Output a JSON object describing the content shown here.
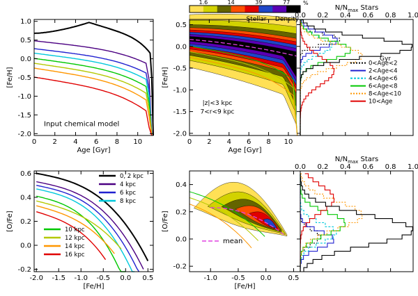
{
  "chart_data": [
    {
      "id": "A",
      "type": "line",
      "title": "",
      "annotation": "Input chemical model",
      "xlabel": "Age [Gyr]",
      "ylabel": "[Fe/H]",
      "xlim": [
        0,
        11.5
      ],
      "ylim": [
        -2.05,
        1.05
      ],
      "xticks": [
        0,
        2,
        4,
        6,
        8,
        10
      ],
      "yticks": [
        -2.0,
        -1.5,
        -1.0,
        -0.5,
        0.0,
        0.5,
        1.0
      ],
      "xtick_labels": [
        "0",
        "2",
        "4",
        "6",
        "8",
        "10"
      ],
      "ytick_labels": [
        "-2.0",
        "-1.5",
        "-1.0",
        "-0.5",
        "0.0",
        "0.5",
        "1.0"
      ],
      "series": [
        {
          "name": "0, 2 kpc",
          "color": "#000000",
          "start": 0.68,
          "peak": 0.97,
          "peak_x": 5.3
        },
        {
          "name": "4 kpc",
          "color": "#4b0082",
          "start": 0.48
        },
        {
          "name": "6 kpc",
          "color": "#2020d0",
          "start": 0.27
        },
        {
          "name": "8 kpc",
          "color": "#00c8dc",
          "start": 0.15
        },
        {
          "name": "10 kpc",
          "color": "#00c800",
          "start": 0.01
        },
        {
          "name": "12 kpc",
          "color": "#b4c800",
          "start": -0.12
        },
        {
          "name": "14 kpc",
          "color": "#ff9600",
          "start": -0.25
        },
        {
          "name": "16 kpc",
          "color": "#e00000",
          "start": -0.49
        }
      ]
    },
    {
      "id": "B",
      "type": "heatmap",
      "xlabel": "Age [Gyr]",
      "ylabel": "[Fe/H]",
      "xlim": [
        0,
        11.2
      ],
      "ylim": [
        -2.05,
        0.62
      ],
      "xticks": [
        0,
        2,
        4,
        6,
        8,
        10
      ],
      "yticks": [
        -2.0,
        -1.5,
        -1.0,
        -0.5,
        0.0,
        0.5
      ],
      "xtick_labels": [
        "0",
        "2",
        "4",
        "6",
        "8",
        "10"
      ],
      "ytick_labels": [
        "-2.0",
        "-1.5",
        "-1.0",
        "-0.5",
        "0.0",
        "0.5"
      ],
      "annotation_lines": [
        "|z|<3 kpc",
        "7<r<9 kpc"
      ],
      "colorbar": {
        "ticks": [
          "1.6",
          "14",
          "39",
          "77"
        ],
        "percent_label": "%",
        "title_left": "Stellar",
        "title_right": "Density",
        "colors": [
          "#ffe055",
          "#d2d200",
          "#646400",
          "#ff5000",
          "#e00000",
          "#1e46c8",
          "#5a00b4",
          "#000000"
        ]
      }
    },
    {
      "id": "C",
      "type": "line",
      "xlabel": "N/N",
      "xlabel_sub": "max",
      "xlabel_suffix": " Stars",
      "xlim": [
        0,
        1.0
      ],
      "ylim": [
        -2.05,
        0.62
      ],
      "xticks": [
        0,
        0.2,
        0.4,
        0.6,
        0.8,
        1.0
      ],
      "xtick_labels": [
        "0.0",
        "0.2",
        "0.4",
        "0.6",
        "0.8",
        "1.0"
      ],
      "legend_title": "Gyr",
      "series": [
        {
          "name": "0<Age<2",
          "color": "#000000",
          "dash": "2,2"
        },
        {
          "name": "2<Age<4",
          "color": "#2020d0",
          "dash": ""
        },
        {
          "name": "4<Age<6",
          "color": "#00c8dc",
          "dash": "3,2"
        },
        {
          "name": "6<Age<8",
          "color": "#00c800",
          "dash": ""
        },
        {
          "name": "8<Age<10",
          "color": "#ff9600",
          "dash": "2,2"
        },
        {
          "name": "10<Age",
          "color": "#e00000",
          "dash": ""
        }
      ]
    },
    {
      "id": "D",
      "type": "line",
      "xlabel": "[Fe/H]",
      "ylabel": "[O/Fe]",
      "xlim": [
        -2.05,
        0.62
      ],
      "ylim": [
        -0.22,
        0.62
      ],
      "xticks": [
        -2.0,
        -1.5,
        -1.0,
        -0.5,
        0.0,
        0.5
      ],
      "yticks": [
        -0.2,
        0.0,
        0.2,
        0.4,
        0.6
      ],
      "xtick_labels": [
        "-2.0",
        "-1.5",
        "-1.0",
        "-0.5",
        "0.0",
        "0.5"
      ],
      "ytick_labels": [
        "-0.2",
        "0.0",
        "0.2",
        "0.4",
        "0.6"
      ],
      "series": [
        {
          "name": "0, 2 kpc",
          "color": "#000000",
          "start_x": -2.0,
          "start_y": 0.6,
          "end_x": 0.5
        },
        {
          "name": "4 kpc",
          "color": "#4b0082",
          "start_x": -2.0,
          "start_y": 0.53,
          "end_x": 0.4
        },
        {
          "name": "6 kpc",
          "color": "#2020d0",
          "start_x": -2.0,
          "start_y": 0.5,
          "end_x": 0.3
        },
        {
          "name": "8 kpc",
          "color": "#00c8dc",
          "start_x": -2.0,
          "start_y": 0.47,
          "end_x": 0.2
        },
        {
          "name": "10 kpc",
          "color": "#00c800",
          "start_x": -2.0,
          "start_y": 0.41,
          "end_x": 0.0
        },
        {
          "name": "12 kpc",
          "color": "#b4c800",
          "start_x": -2.0,
          "start_y": 0.37,
          "end_x": -0.1
        },
        {
          "name": "14 kpc",
          "color": "#ff9600",
          "start_x": -2.0,
          "start_y": 0.33,
          "end_x": -0.25
        },
        {
          "name": "16 kpc",
          "color": "#e00000",
          "start_x": -2.0,
          "start_y": 0.28,
          "end_x": -0.45
        }
      ],
      "legend_top": [
        "0, 2 kpc",
        "4 kpc",
        "6 kpc",
        "8 kpc"
      ],
      "legend_bottom": [
        "10 kpc",
        "12 kpc",
        "14 kpc",
        "16 kpc"
      ]
    },
    {
      "id": "E",
      "type": "heatmap",
      "xlabel": "[Fe/H]",
      "ylabel": "[O/Fe]",
      "xlim": [
        -1.38,
        0.62
      ],
      "ylim": [
        -0.24,
        0.5
      ],
      "xticks": [
        -1.0,
        -0.5,
        0.0,
        0.5
      ],
      "yticks": [
        -0.2,
        0.0,
        0.2,
        0.4
      ],
      "xtick_labels": [
        "-1.0",
        "-0.5",
        "0.0",
        "0.5"
      ],
      "ytick_labels": [
        "-0.2",
        "0.0",
        "0.2",
        "0.4"
      ],
      "legend": "mean",
      "legend_color": "#e040e0"
    },
    {
      "id": "F",
      "type": "line",
      "xlabel": "N/N",
      "xlabel_sub": "max",
      "xlabel_suffix": " Stars",
      "xlim": [
        0,
        1.0
      ],
      "ylim": [
        -0.24,
        0.5
      ],
      "xticks": [
        0,
        0.2,
        0.4,
        0.6,
        0.8,
        1.0
      ],
      "xtick_labels": [
        "0.0",
        "0.2",
        "0.4",
        "0.6",
        "0.8",
        "1.0"
      ]
    }
  ]
}
